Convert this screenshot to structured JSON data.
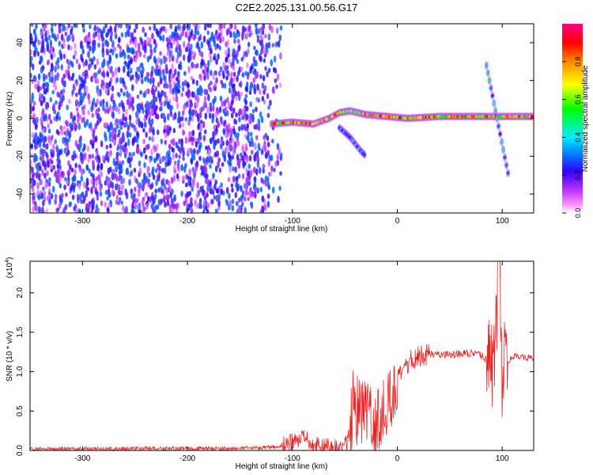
{
  "title": "C2E2.2025.131.00.56.G17",
  "chart_data": [
    {
      "type": "heatmap",
      "title": "C2E2.2025.131.00.56.G17",
      "xlabel": "Height of straight line (km)",
      "ylabel": "Frequency (Hz)",
      "xlim": [
        -350,
        130
      ],
      "ylim": [
        -50,
        50
      ],
      "x_ticks": [
        -300,
        -200,
        -100,
        0,
        100
      ],
      "y_ticks": [
        -40,
        -20,
        0,
        20,
        40
      ],
      "colorbar": {
        "label": "Normalized spectral amplitude",
        "range": [
          0,
          1
        ],
        "ticks": [
          "0.0",
          "0.2",
          "0.4",
          "0.6",
          "0.8"
        ],
        "colors": [
          "#ffffff",
          "#cc99ff",
          "#7f00ff",
          "#0000ff",
          "#00ffff",
          "#00ff00",
          "#ffff00",
          "#ff8000",
          "#ff0000",
          "#ff00aa"
        ]
      },
      "features": [
        {
          "name": "noise",
          "x_range": [
            -350,
            -110
          ],
          "freq_range": [
            -50,
            50
          ],
          "amplitude": 0.15
        },
        {
          "name": "main_trace",
          "points": [
            [
              -120,
              -3
            ],
            [
              -100,
              -2
            ],
            [
              -80,
              -3
            ],
            [
              -65,
              0
            ],
            [
              -55,
              3
            ],
            [
              -45,
              4
            ],
            [
              -30,
              2
            ],
            [
              -10,
              1
            ],
            [
              10,
              0
            ],
            [
              40,
              1
            ],
            [
              70,
              1
            ],
            [
              100,
              1
            ],
            [
              130,
              1
            ]
          ],
          "amplitude": 0.95
        },
        {
          "name": "secondary_trace",
          "points": [
            [
              -55,
              -5
            ],
            [
              -45,
              -10
            ],
            [
              -35,
              -17
            ],
            [
              -30,
              -20
            ]
          ],
          "amplitude": 0.4
        },
        {
          "name": "diagonal_line",
          "points": [
            [
              85,
              28
            ],
            [
              95,
              0
            ],
            [
              107,
              -33
            ]
          ],
          "amplitude": 0.5
        }
      ]
    },
    {
      "type": "line",
      "xlabel": "Height of straight line (km)",
      "ylabel": "SNR (10 * v/v)",
      "exponent_label": "(x10",
      "exponent_power": "4",
      "exponent_close": ")",
      "xlim": [
        -350,
        130
      ],
      "ylim": [
        0,
        24000
      ],
      "x_ticks": [
        -300,
        -200,
        -100,
        0,
        100
      ],
      "y_ticks": [
        "0.0",
        "0.5",
        "1.0",
        "1.5",
        "2.0"
      ],
      "color": "#ee0000",
      "series": [
        {
          "x": [
            -350,
            -300,
            -250,
            -200,
            -150,
            -110,
            -100,
            -90,
            -80,
            -70,
            -60,
            -50,
            -45,
            -42,
            -38,
            -35,
            -30,
            -25,
            -20,
            -15,
            -10,
            -5,
            0,
            5,
            10,
            20,
            30,
            40,
            50,
            60,
            70,
            75,
            80,
            85,
            90,
            93,
            95,
            97,
            99,
            100,
            102,
            105,
            110,
            120,
            130
          ],
          "y": [
            200,
            200,
            250,
            250,
            250,
            500,
            1000,
            1500,
            800,
            500,
            300,
            500,
            2000,
            6000,
            5000,
            5000,
            4500,
            4000,
            3000,
            5000,
            6000,
            7000,
            8500,
            10000,
            11000,
            12000,
            12300,
            12200,
            12200,
            12300,
            12300,
            12200,
            12000,
            11500,
            10000,
            12000,
            20000,
            23000,
            14000,
            500,
            12000,
            11000,
            12000,
            11800,
            11700
          ]
        }
      ]
    }
  ]
}
